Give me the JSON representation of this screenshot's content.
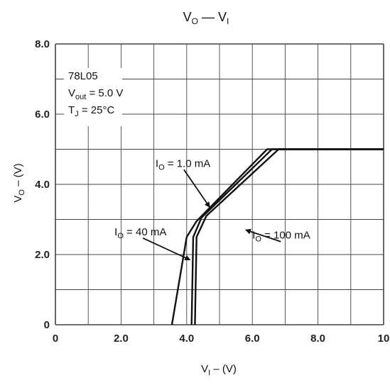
{
  "chart_data": {
    "type": "line",
    "title": {
      "main": "V",
      "sub_main": "O",
      "mid": " — V",
      "sub_end": "I"
    },
    "xlabel": {
      "main": "V",
      "sub": "I",
      "rest": " – (V)"
    },
    "ylabel": {
      "main": "V",
      "sub": "O",
      "rest": " – (V)"
    },
    "xlim": [
      0,
      10
    ],
    "ylim": [
      0,
      8.0
    ],
    "xticks": [
      0,
      2,
      4,
      6,
      8,
      10
    ],
    "yticks": [
      0,
      2,
      4,
      6,
      8
    ],
    "xtick_labels": [
      "0",
      "2.0",
      "4.0",
      "6.0",
      "8.0",
      "10"
    ],
    "ytick_labels": [
      "0",
      "2.0",
      "4.0",
      "6.0",
      "8.0"
    ],
    "grid": true,
    "conditions": {
      "device": "78L05",
      "vout": {
        "main": "V",
        "sub": "out",
        "rest": " = 5.0 V"
      },
      "tj": {
        "main": "T",
        "sub": "J",
        "rest": " = 25°C"
      }
    },
    "series": [
      {
        "label": {
          "main": "I",
          "sub": "O",
          "rest": " = 40 mA"
        },
        "x": [
          3.55,
          4.0,
          4.3,
          6.45,
          10
        ],
        "y": [
          0,
          2.5,
          2.95,
          5.0,
          5.0
        ]
      },
      {
        "label": {
          "main": "I",
          "sub": "O",
          "rest": " = 100 mA"
        },
        "x": [
          4.15,
          4.2,
          4.45,
          6.6,
          10
        ],
        "y": [
          0,
          2.5,
          3.05,
          5.0,
          5.0
        ]
      },
      {
        "label": {
          "main": "I",
          "sub": "O",
          "rest": " = 1.0 mA"
        },
        "x": [
          4.25,
          4.3,
          4.6,
          6.8,
          10
        ],
        "y": [
          0,
          2.5,
          3.1,
          5.0,
          5.0
        ]
      }
    ],
    "annotations": [
      {
        "series": 2,
        "text": {
          "main": "I",
          "sub": "O",
          "rest": " = 1.0 mA"
        },
        "at": [
          3.05,
          4.5
        ],
        "arrow_to": [
          4.7,
          3.35
        ]
      },
      {
        "series": 0,
        "text": {
          "main": "I",
          "sub": "O",
          "rest": " = 40 mA"
        },
        "at": [
          1.8,
          2.55
        ],
        "arrow_to": [
          4.1,
          1.85
        ]
      },
      {
        "series": 1,
        "text": {
          "main": "I",
          "sub": "O",
          "rest": " = 100 mA"
        },
        "at": [
          6.0,
          2.45
        ],
        "arrow_to": [
          5.8,
          2.7
        ]
      }
    ],
    "line_color": "#111111",
    "grid_color": "#444444"
  }
}
